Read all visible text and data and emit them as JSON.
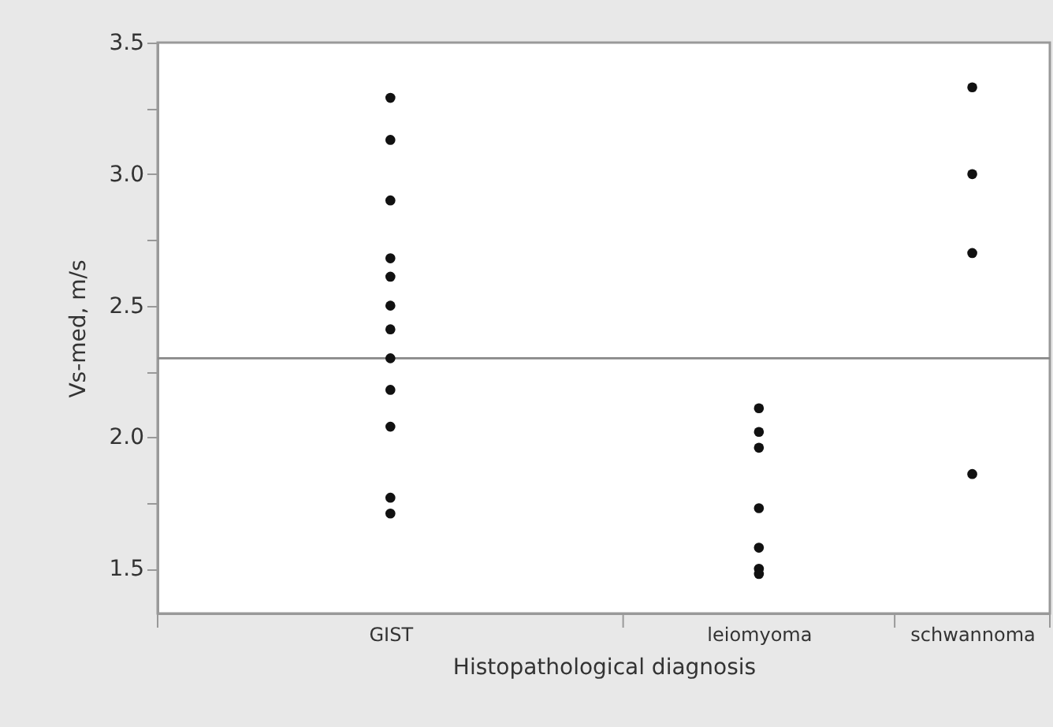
{
  "chart_data": {
    "type": "scatter",
    "xlabel": "Histopathological diagnosis",
    "ylabel": "Vs-med, m/s",
    "categories": [
      "GIST",
      "leiomyoma",
      "schwannoma"
    ],
    "series": [
      {
        "color": "#111111",
        "x": [
          "GIST",
          "GIST",
          "GIST",
          "GIST",
          "GIST",
          "GIST",
          "GIST",
          "GIST",
          "GIST",
          "GIST",
          "GIST",
          "GIST",
          "leiomyoma",
          "leiomyoma",
          "leiomyoma",
          "leiomyoma",
          "leiomyoma",
          "leiomyoma",
          "leiomyoma",
          "schwannoma",
          "schwannoma",
          "schwannoma",
          "schwannoma"
        ],
        "values": [
          3.29,
          3.13,
          2.9,
          2.68,
          2.61,
          2.5,
          2.41,
          2.3,
          2.18,
          2.04,
          1.77,
          1.71,
          2.11,
          2.02,
          1.96,
          1.73,
          1.58,
          1.5,
          1.48,
          3.33,
          3.0,
          2.7,
          1.86
        ]
      }
    ],
    "ylim": [
      1.33,
      3.5
    ],
    "yticks": [
      {
        "value": 1.5,
        "label": "1.5"
      },
      {
        "value": 1.75,
        "label": null
      },
      {
        "value": 2,
        "label": "2.0"
      },
      {
        "value": 2.25,
        "label": null
      },
      {
        "value": 2.5,
        "label": "2.5"
      },
      {
        "value": 2.75,
        "label": null
      },
      {
        "value": 3,
        "label": "3.0"
      },
      {
        "value": 3.25,
        "label": null
      },
      {
        "value": 3.5,
        "label": "3.5"
      }
    ],
    "ref_lines": [
      {
        "axis": "y",
        "value": 2.3,
        "color": "#888888"
      }
    ],
    "grid": false,
    "marker": "circle"
  }
}
